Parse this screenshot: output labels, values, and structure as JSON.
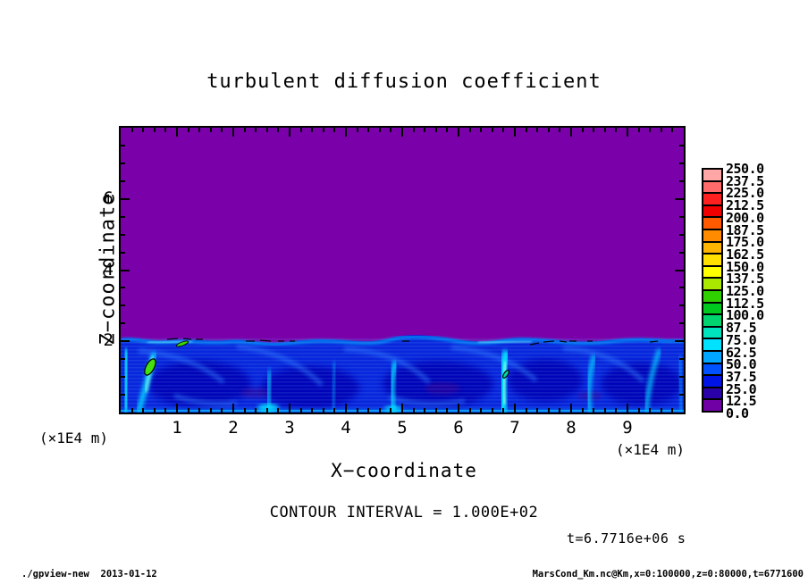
{
  "title": "turbulent diffusion coefficient",
  "axes": {
    "x_label": "X−coordinate",
    "z_label": "Z−coordinate",
    "x_unit_left": "(×1E4 m)",
    "x_unit_right": "(×1E4 m)",
    "x_tick_labels": [
      "1",
      "2",
      "3",
      "4",
      "5",
      "6",
      "7",
      "8",
      "9"
    ],
    "z_tick_labels": [
      "2",
      "4",
      "6"
    ]
  },
  "colorbar": {
    "labels_ascending": [
      "0.0",
      "12.5",
      "25.0",
      "37.5",
      "50.0",
      "62.5",
      "75.0",
      "87.5",
      "100.0",
      "112.5",
      "125.0",
      "137.5",
      "150.0",
      "162.5",
      "175.0",
      "187.5",
      "200.0",
      "212.5",
      "225.0",
      "237.5",
      "250.0"
    ],
    "colors_ascending": [
      "#7000A6",
      "#2A00A8",
      "#0014E6",
      "#0052FF",
      "#00A6FF",
      "#00E2FF",
      "#00E4BE",
      "#00D46E",
      "#00C81E",
      "#30D000",
      "#AAE800",
      "#FFFF00",
      "#FFE000",
      "#FFB400",
      "#FF8C00",
      "#FF5A00",
      "#F00000",
      "#FF2020",
      "#FF6A6A",
      "#FFA6A6"
    ]
  },
  "annotations": {
    "contour_interval": "CONTOUR INTERVAL = 1.000E+02",
    "time": "t=6.7716e+06 s"
  },
  "footer": {
    "left": "./gpview-new  2013-01-12",
    "right": "MarsCond_Km.nc@Km,x=0:100000,z=0:80000,t=6771600"
  },
  "chart_data": {
    "type": "heatmap",
    "title": "turbulent diffusion coefficient",
    "xlabel": "X−coordinate (×1E4 m)",
    "ylabel": "Z−coordinate (×1E4 m)",
    "xlim": [
      0,
      10
    ],
    "zlim": [
      0,
      8
    ],
    "x_ticks": [
      1,
      2,
      3,
      4,
      5,
      6,
      7,
      8,
      9
    ],
    "z_ticks": [
      2,
      4,
      6
    ],
    "contour_interval": 100.0,
    "time_seconds": 6771600,
    "levels": [
      0,
      12.5,
      25,
      37.5,
      50,
      62.5,
      75,
      87.5,
      100,
      112.5,
      125,
      137.5,
      150,
      162.5,
      175,
      187.5,
      200,
      212.5,
      225,
      237.5,
      250
    ],
    "palette": [
      "#7000A6",
      "#2A00A8",
      "#0014E6",
      "#0052FF",
      "#00A6FF",
      "#00E2FF",
      "#00E4BE",
      "#00D46E",
      "#00C81E",
      "#30D000",
      "#AAE800",
      "#FFFF00",
      "#FFE000",
      "#FFB400",
      "#FF8C00",
      "#FF5A00",
      "#F00000",
      "#FF2020",
      "#FF6A6A",
      "#FFA6A6"
    ],
    "background_value_color": "#7A00AA",
    "field_summary": "Values ≈ 0 (purple) everywhere above z≈2×1E4 m; turbulent boundary layer below z≈2 with values ≈ 25–125 (dark blue background, cyan convective plumes). Closed black contours (level 100) around local maxima ≈125–150 (small green blobs) near x≈0.55 and x≈6.85; dashed level-100 contour segments along the z≈2 interface near x≈0.8–3.2, x≈5.0, x≈7.3–8.0 and x≈9.4.",
    "plume_x_positions": [
      0.15,
      0.55,
      2.65,
      3.75,
      4.85,
      6.8,
      8.3,
      9.45
    ],
    "vortex_core_x_positions": [
      1.45,
      3.4,
      5.65,
      7.55,
      9.25
    ]
  }
}
